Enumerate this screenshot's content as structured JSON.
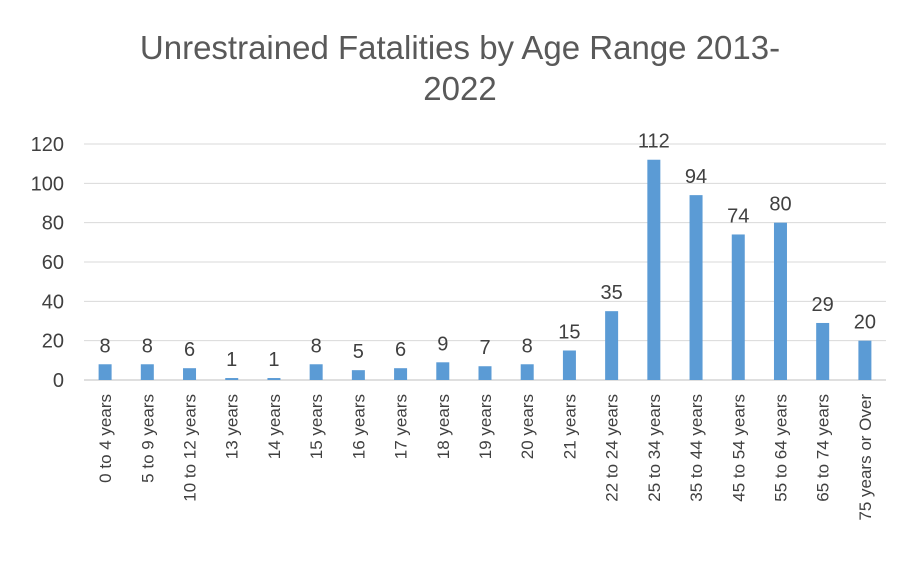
{
  "chart_data": {
    "type": "bar",
    "title_lines": [
      "Unrestrained Fatalities by Age Range 2013-",
      "2022"
    ],
    "categories": [
      "0 to 4 years",
      "5 to 9 years",
      "10 to 12 years",
      "13 years",
      "14 years",
      "15 years",
      "16 years",
      "17 years",
      "18 years",
      "19 years",
      "20 years",
      "21 years",
      "22 to 24 years",
      "25 to 34 years",
      "35 to 44 years",
      "45 to 54 years",
      "55 to 64 years",
      "65 to 74 years",
      "75 years or Over"
    ],
    "values": [
      8,
      8,
      6,
      1,
      1,
      8,
      5,
      6,
      9,
      7,
      8,
      15,
      35,
      112,
      94,
      74,
      80,
      29,
      20
    ],
    "ylim": [
      0,
      120
    ],
    "yticks": [
      0,
      20,
      40,
      60,
      80,
      100,
      120
    ],
    "grid": true,
    "bar_color": "#5B9BD5",
    "grid_color": "#D9D9D9",
    "text_color": "#404040",
    "data_labels": true,
    "legend": "none"
  }
}
